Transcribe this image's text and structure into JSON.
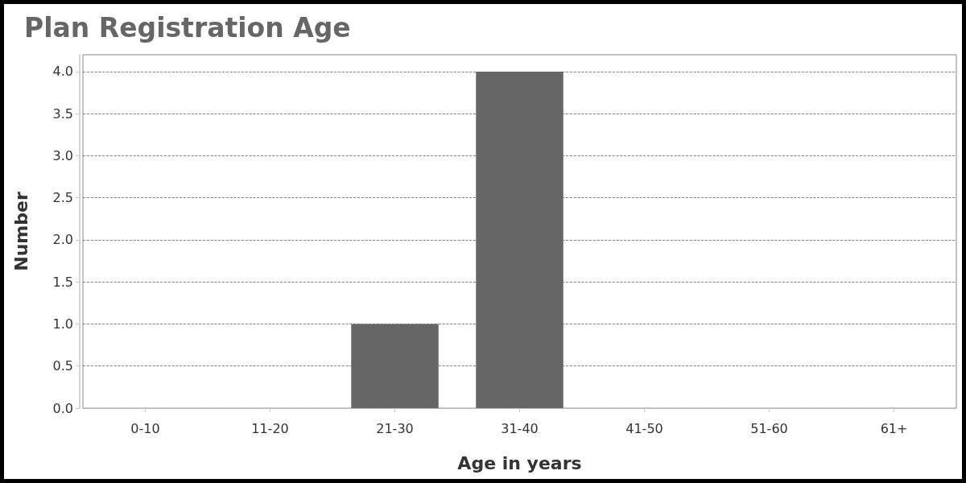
{
  "chart_data": {
    "type": "bar",
    "title": "Plan Registration Age",
    "xlabel": "Age in years",
    "ylabel": "Number",
    "categories": [
      "0-10",
      "11-20",
      "21-30",
      "31-40",
      "41-50",
      "51-60",
      "61+"
    ],
    "values": [
      0,
      0,
      1,
      4,
      0,
      0,
      0
    ],
    "color": "#666666",
    "ylim": [
      0,
      4.2
    ],
    "yticks": [
      {
        "value": 0,
        "label": "0.0"
      },
      0.5,
      {
        "value": 1,
        "label": "1.0"
      },
      1.5,
      {
        "value": 2,
        "label": "2.0"
      },
      2.5,
      {
        "value": 3,
        "label": "3.0"
      },
      3.5,
      {
        "value": 4,
        "label": "4.0"
      }
    ],
    "grid": "y"
  }
}
